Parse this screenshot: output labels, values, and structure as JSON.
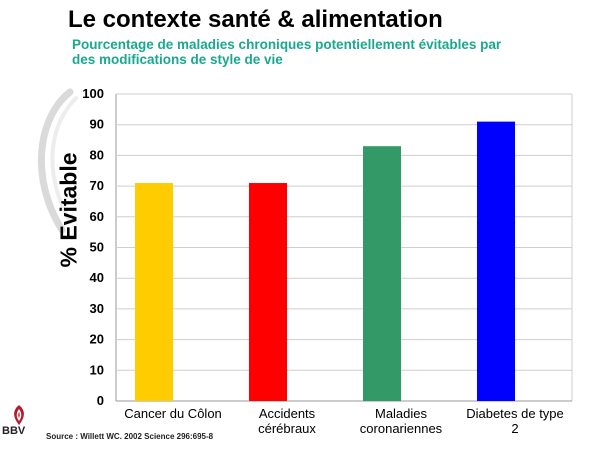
{
  "slide": {
    "title": "Le contexte santé & alimentation",
    "subtitle": "Pourcentage de maladies chroniques potentiellement évitables par des modifications de style de vie",
    "source": "Source : Willett WC. 2002 Science 296:695-8",
    "logo_text": "BBV"
  },
  "chart_data": {
    "type": "bar",
    "title": "",
    "xlabel": "",
    "ylabel": "% Evitable",
    "categories": [
      [
        "Cancer du Côlon"
      ],
      [
        "Accidents",
        "cérébraux"
      ],
      [
        "Maladies",
        "coronariennes"
      ],
      [
        "Diabetes de type",
        "2"
      ]
    ],
    "values": [
      71,
      71,
      83,
      91
    ],
    "colors": [
      "#ffcc00",
      "#ff0000",
      "#339966",
      "#0000ff"
    ],
    "ylim": [
      0,
      100
    ],
    "yticks": [
      0,
      10,
      20,
      30,
      40,
      50,
      60,
      70,
      80,
      90,
      100
    ],
    "grid": true,
    "legend": "none"
  }
}
